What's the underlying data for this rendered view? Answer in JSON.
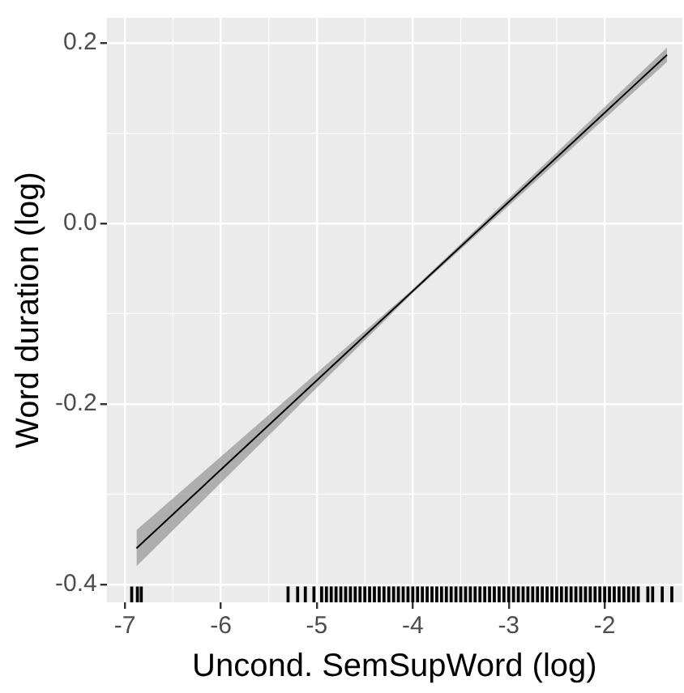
{
  "chart_data": {
    "type": "line",
    "xlabel": "Uncond. SemSupWord (log)",
    "ylabel": "Word duration (log)",
    "xlim": [
      -7.19,
      -1.19
    ],
    "xticks": [
      -7,
      -6,
      -5,
      -4,
      -3,
      -2
    ],
    "ylim": [
      -0.42,
      0.228
    ],
    "yticks": [
      {
        "value": -0.4,
        "label": "-0.4"
      },
      {
        "value": -0.2,
        "label": "-0.2"
      },
      {
        "value": 0,
        "label": "0.0"
      },
      {
        "value": 0.2,
        "label": "0.2"
      }
    ],
    "grid": true,
    "legend": false,
    "series": [
      {
        "color": "#000000",
        "x": [
          -6.88,
          -4,
          -1.35
        ],
        "values": [
          -0.36,
          -0.075,
          0.187
        ],
        "lower": [
          -0.38,
          -0.077,
          0.179
        ],
        "upper": [
          -0.34,
          -0.073,
          0.195
        ],
        "marker": "none"
      },
      {
        "type": "bar",
        "color": "#000000",
        "base": [
          -0.42,
          -0.42,
          -0.42,
          -0.42,
          -0.42,
          -0.42,
          -0.42,
          -0.42,
          -0.42,
          -0.42,
          -0.42,
          -0.42,
          -0.42,
          -0.42,
          -0.42,
          -0.42,
          -0.42,
          -0.42,
          -0.42,
          -0.42,
          -0.42,
          -0.42,
          -0.42,
          -0.42,
          -0.42,
          -0.42,
          -0.42,
          -0.42,
          -0.42,
          -0.42,
          -0.42,
          -0.42,
          -0.42,
          -0.42,
          -0.42,
          -0.42,
          -0.42,
          -0.42,
          -0.42,
          -0.42,
          -0.42,
          -0.42,
          -0.42,
          -0.42,
          -0.42,
          -0.42,
          -0.42,
          -0.42,
          -0.42,
          -0.42,
          -0.42,
          -0.42,
          -0.42,
          -0.42,
          -0.42,
          -0.42,
          -0.42,
          -0.42,
          -0.42,
          -0.42,
          -0.42,
          -0.42,
          -0.42,
          -0.42,
          -0.42,
          -0.42,
          -0.42,
          -0.42,
          -0.42,
          -0.42,
          -0.42,
          -0.42,
          -0.42,
          -0.42,
          -0.42,
          -0.42,
          -0.42,
          -0.42
        ],
        "x": [
          -6.93,
          -6.87,
          -6.83,
          -5.3,
          -5.2,
          -5.12,
          -5.03,
          -4.95,
          -4.9,
          -4.85,
          -4.8,
          -4.75,
          -4.7,
          -4.65,
          -4.6,
          -4.55,
          -4.5,
          -4.45,
          -4.4,
          -4.35,
          -4.3,
          -4.25,
          -4.2,
          -4.15,
          -4.1,
          -4.05,
          -4,
          -3.95,
          -3.9,
          -3.85,
          -3.8,
          -3.75,
          -3.7,
          -3.65,
          -3.6,
          -3.55,
          -3.5,
          -3.45,
          -3.4,
          -3.35,
          -3.3,
          -3.25,
          -3.2,
          -3.15,
          -3.1,
          -3.05,
          -3,
          -2.95,
          -2.9,
          -2.85,
          -2.8,
          -2.75,
          -2.7,
          -2.65,
          -2.6,
          -2.55,
          -2.5,
          -2.45,
          -2.4,
          -2.35,
          -2.3,
          -2.25,
          -2.2,
          -2.15,
          -2.1,
          -2.05,
          -2,
          -1.95,
          -1.9,
          -1.85,
          -1.8,
          -1.75,
          -1.7,
          -1.65,
          -1.55,
          -1.5,
          -1.4,
          -1.3
        ],
        "values": [
          0.017,
          0.017,
          0.017,
          0.017,
          0.017,
          0.017,
          0.017,
          0.017,
          0.017,
          0.017,
          0.017,
          0.017,
          0.017,
          0.017,
          0.017,
          0.017,
          0.017,
          0.017,
          0.017,
          0.017,
          0.017,
          0.017,
          0.017,
          0.017,
          0.017,
          0.017,
          0.017,
          0.017,
          0.017,
          0.017,
          0.017,
          0.017,
          0.017,
          0.017,
          0.017,
          0.017,
          0.017,
          0.017,
          0.017,
          0.017,
          0.017,
          0.017,
          0.017,
          0.017,
          0.017,
          0.017,
          0.017,
          0.017,
          0.017,
          0.017,
          0.017,
          0.017,
          0.017,
          0.017,
          0.017,
          0.017,
          0.017,
          0.017,
          0.017,
          0.017,
          0.017,
          0.017,
          0.017,
          0.017,
          0.017,
          0.017,
          0.017,
          0.017,
          0.017,
          0.017,
          0.017,
          0.017,
          0.017,
          0.017,
          0.017,
          0.017,
          0.017,
          0.017
        ]
      }
    ]
  }
}
